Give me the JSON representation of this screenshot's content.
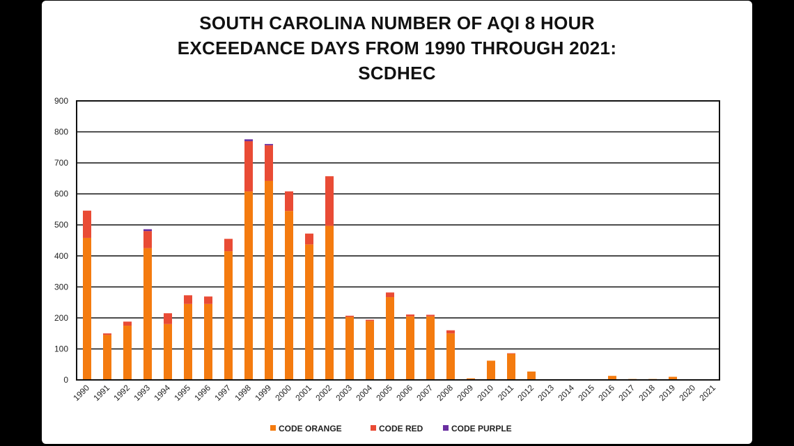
{
  "chart_data": {
    "type": "bar",
    "stacked": true,
    "title_lines": [
      "SOUTH CAROLINA NUMBER OF AQI 8 HOUR",
      "EXCEEDANCE DAYS FROM 1990 THROUGH 2021:",
      "SCDHEC"
    ],
    "xlabel": "",
    "ylabel": "",
    "ylim": [
      0,
      900
    ],
    "yticks": [
      0,
      100,
      200,
      300,
      400,
      500,
      600,
      700,
      800,
      900
    ],
    "grid": true,
    "legend_position": "bottom",
    "categories": [
      "1990",
      "1991",
      "1992",
      "1993",
      "1994",
      "1995",
      "1996",
      "1997",
      "1998",
      "1999",
      "2000",
      "2001",
      "2002",
      "2003",
      "2004",
      "2005",
      "2006",
      "2007",
      "2008",
      "2009",
      "2010",
      "2011",
      "2012",
      "2013",
      "2014",
      "2015",
      "2016",
      "2017",
      "2018",
      "2019",
      "2020",
      "2021"
    ],
    "series": [
      {
        "name": "CODE ORANGE",
        "color": "#f47b0f",
        "values": [
          458,
          145,
          175,
          425,
          180,
          245,
          245,
          415,
          608,
          642,
          545,
          437,
          497,
          203,
          190,
          267,
          205,
          205,
          150,
          5,
          62,
          84,
          27,
          2,
          1,
          1,
          13,
          3,
          3,
          10,
          1,
          2
        ]
      },
      {
        "name": "CODE RED",
        "color": "#e94b35",
        "values": [
          88,
          5,
          13,
          55,
          35,
          28,
          24,
          40,
          162,
          115,
          63,
          35,
          160,
          4,
          4,
          15,
          6,
          5,
          10,
          0,
          0,
          2,
          0,
          0,
          0,
          0,
          0,
          0,
          0,
          0,
          0,
          0
        ]
      },
      {
        "name": "CODE PURPLE",
        "color": "#6a2fa0",
        "values": [
          0,
          0,
          0,
          6,
          0,
          0,
          0,
          0,
          6,
          4,
          0,
          0,
          0,
          0,
          0,
          0,
          0,
          0,
          0,
          0,
          0,
          0,
          0,
          0,
          0,
          0,
          0,
          0,
          0,
          0,
          0,
          0
        ]
      }
    ]
  }
}
